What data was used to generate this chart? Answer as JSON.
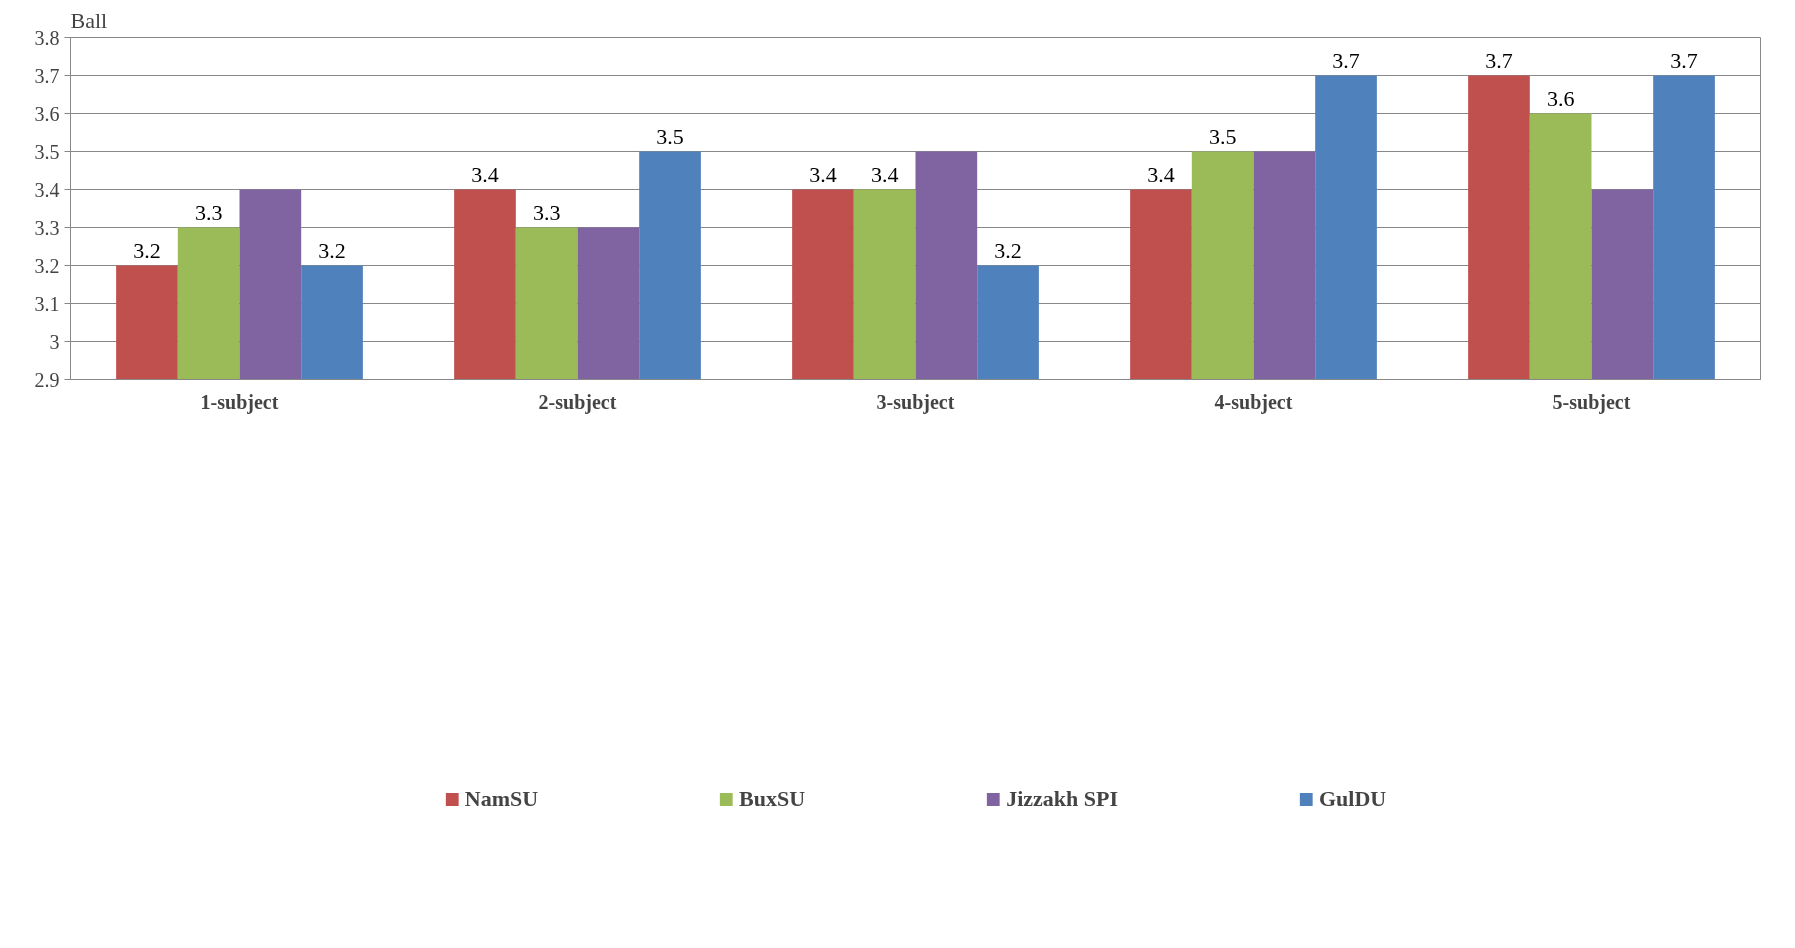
{
  "chart_data": {
    "type": "bar",
    "ylabel": "Ball",
    "categories": [
      "1-subject",
      "2-subject",
      "3-subject",
      "4-subject",
      "5-subject"
    ],
    "series": [
      {
        "name": "NamSU",
        "color": "#c0504d",
        "values": [
          3.2,
          3.4,
          3.4,
          3.4,
          3.7
        ],
        "value_labels": [
          "3.2",
          "3.4",
          "3.4",
          "3.4",
          "3.7"
        ]
      },
      {
        "name": "BuxSU",
        "color": "#9bbb59",
        "values": [
          3.3,
          3.3,
          3.4,
          3.5,
          3.6
        ],
        "value_labels": [
          "3.3",
          "3.3",
          "3.4",
          "3.5",
          "3.6"
        ]
      },
      {
        "name": "Jizzakh SPI",
        "color": "#8064a2",
        "values": [
          3.4,
          3.3,
          3.5,
          3.5,
          3.4
        ],
        "value_labels": [
          null,
          null,
          null,
          null,
          null
        ]
      },
      {
        "name": "GulDU",
        "color": "#4f81bd",
        "values": [
          3.2,
          3.5,
          3.2,
          3.7,
          3.7
        ],
        "value_labels": [
          "3.2",
          "3.5",
          "3.2",
          "3.7",
          "3.7"
        ]
      }
    ],
    "ylim": [
      2.9,
      3.8
    ],
    "yticks": [
      2.9,
      3,
      3.1,
      3.2,
      3.3,
      3.4,
      3.5,
      3.6,
      3.7,
      3.8
    ],
    "grid": "y",
    "legend": "bottom"
  }
}
